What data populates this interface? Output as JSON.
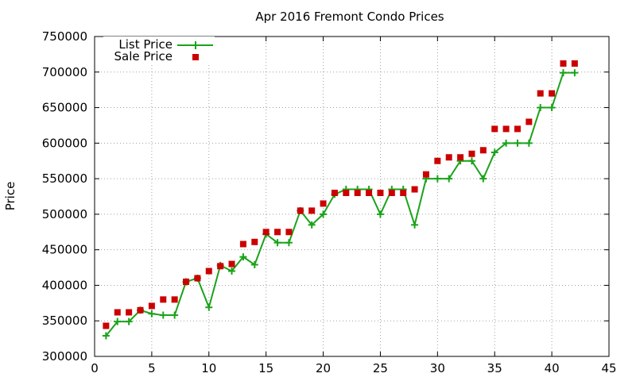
{
  "chart_data": {
    "type": "line",
    "title": "Apr 2016 Fremont Condo Prices",
    "xlabel": "",
    "ylabel": "Price",
    "xlim": [
      0,
      45
    ],
    "ylim": [
      300000,
      750000
    ],
    "xticks": [
      0,
      5,
      10,
      15,
      20,
      25,
      30,
      35,
      40,
      45
    ],
    "yticks": [
      300000,
      350000,
      400000,
      450000,
      500000,
      550000,
      600000,
      650000,
      700000,
      750000
    ],
    "grid": true,
    "legend_position": "top-left",
    "series": [
      {
        "name": "List Price",
        "style": "linespoints",
        "marker": "plus",
        "color": "#1aa31a",
        "x": [
          1,
          2,
          3,
          4,
          5,
          6,
          7,
          8,
          9,
          10,
          11,
          12,
          13,
          14,
          15,
          16,
          17,
          18,
          19,
          20,
          21,
          22,
          23,
          24,
          25,
          26,
          27,
          28,
          29,
          30,
          31,
          32,
          33,
          34,
          35,
          36,
          37,
          38,
          39,
          40,
          41,
          42
        ],
        "y": [
          329000,
          349000,
          349000,
          365000,
          360000,
          358000,
          358000,
          405000,
          410000,
          369000,
          428000,
          420000,
          440000,
          429000,
          472000,
          460000,
          460000,
          505000,
          485000,
          500000,
          528000,
          535000,
          535000,
          535000,
          500000,
          535000,
          535000,
          485000,
          550000,
          550000,
          550000,
          575000,
          575000,
          550000,
          587000,
          600000,
          600000,
          600000,
          650000,
          650000,
          699000,
          699000
        ]
      },
      {
        "name": "Sale Price",
        "style": "points",
        "marker": "square",
        "color": "#cc0000",
        "x": [
          1,
          2,
          3,
          4,
          5,
          6,
          7,
          8,
          9,
          10,
          11,
          12,
          13,
          14,
          15,
          16,
          17,
          18,
          19,
          20,
          21,
          22,
          23,
          24,
          25,
          26,
          27,
          28,
          29,
          30,
          31,
          32,
          33,
          34,
          35,
          36,
          37,
          38,
          39,
          40,
          41,
          42
        ],
        "y": [
          343000,
          362000,
          362000,
          365000,
          371000,
          380000,
          380000,
          405000,
          410000,
          420000,
          427000,
          430000,
          458000,
          461000,
          475000,
          475000,
          475000,
          505000,
          505000,
          515000,
          530000,
          530000,
          530000,
          530000,
          530000,
          530000,
          530000,
          535000,
          556000,
          575000,
          580000,
          580000,
          585000,
          590000,
          620000,
          620000,
          620000,
          630000,
          670000,
          670000,
          712000,
          712000
        ]
      }
    ]
  }
}
